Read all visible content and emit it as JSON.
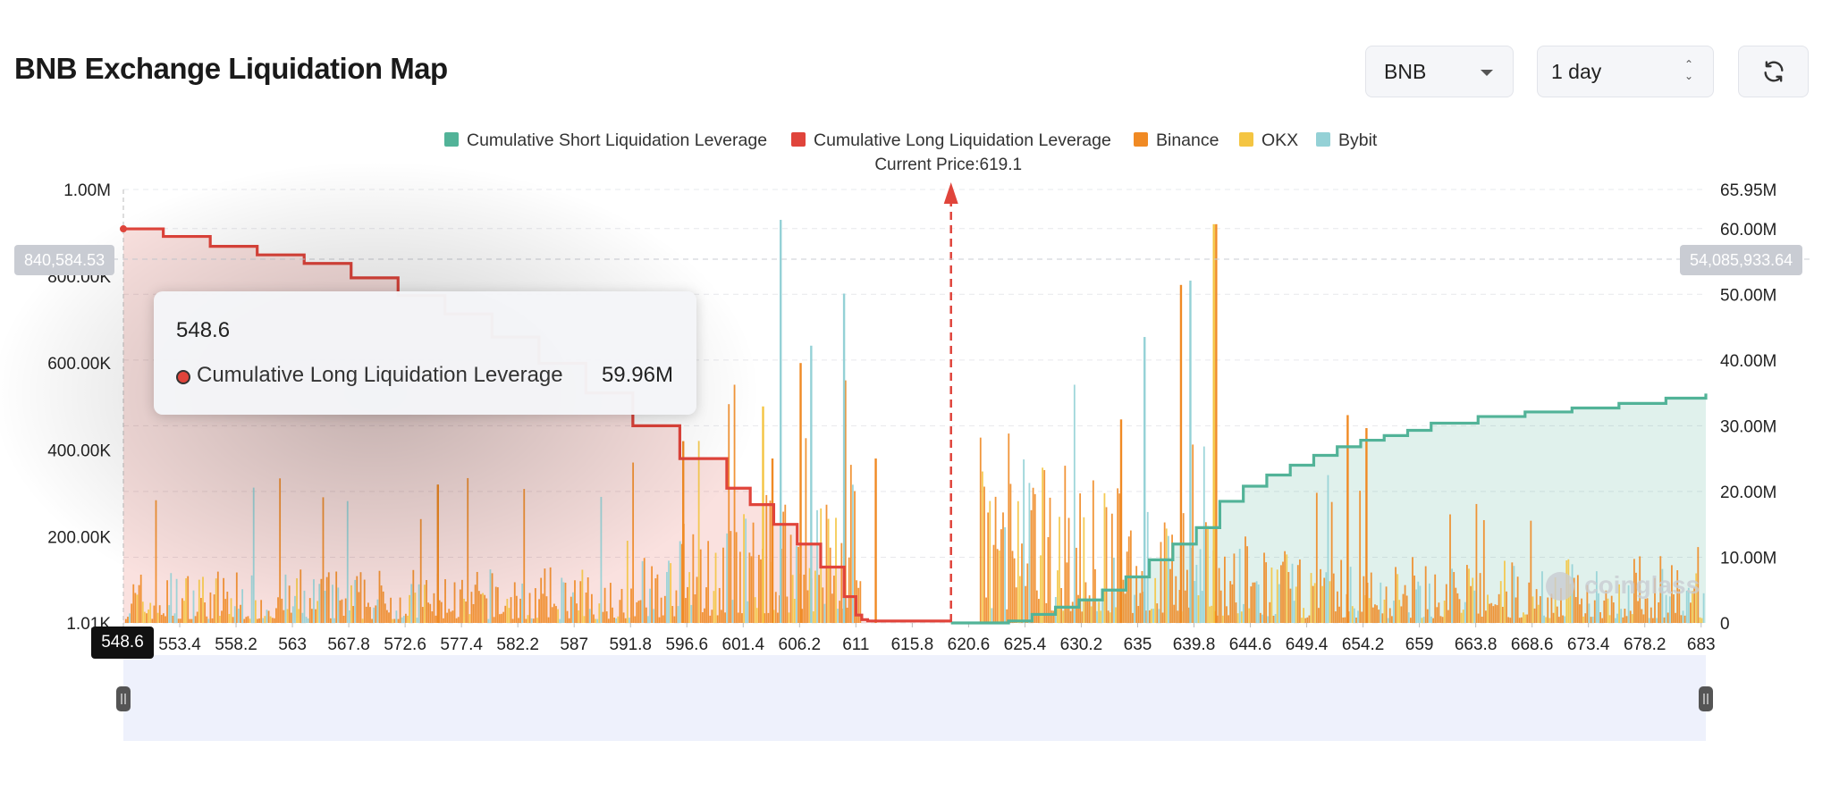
{
  "header": {
    "title": "BNB Exchange Liquidation Map",
    "coin_select": "BNB",
    "range_select": "1 day"
  },
  "icons": {
    "refresh": "refresh-icon",
    "dropdown": "chevron-down-icon",
    "stepper": "updown-icon"
  },
  "colors": {
    "short": "#52b398",
    "long": "#e0443b",
    "binance": "#f08a24",
    "okx": "#f4c542",
    "bybit": "#94d1d6",
    "current_price_line": "#e0443b"
  },
  "crosshair": {
    "left_value": "840,584.53",
    "right_value": "54,085,933.64",
    "x_value": "548.6"
  },
  "tooltip": {
    "title": "548.6",
    "series_name": "Cumulative Long Liquidation Leverage",
    "value": "59.96M"
  },
  "watermark": "coinglass",
  "chart_data": {
    "type": "bar",
    "legend": [
      "Cumulative Short Liquidation Leverage",
      "Cumulative Long Liquidation Leverage",
      "Binance",
      "OKX",
      "Bybit"
    ],
    "legend_placement": "top-center",
    "current_price_label": "Current Price:619.1",
    "current_price": 619.1,
    "x_ticks": [
      "548.6",
      "553.4",
      "558.2",
      "563",
      "567.8",
      "572.6",
      "577.4",
      "582.2",
      "587",
      "591.8",
      "596.6",
      "601.4",
      "606.2",
      "611",
      "615.8",
      "620.6",
      "625.4",
      "630.2",
      "635",
      "639.8",
      "644.6",
      "649.4",
      "654.2",
      "659",
      "663.8",
      "668.6",
      "673.4",
      "678.2",
      "683"
    ],
    "xlim": [
      548.6,
      683.4
    ],
    "left_axis_ticks": [
      "1.01K",
      "200.00K",
      "400.00K",
      "600.00K",
      "800.00K",
      "1.00M"
    ],
    "left_ylim": [
      1010,
      1000000
    ],
    "right_axis_ticks": [
      "0",
      "10.00M",
      "20.00M",
      "30.00M",
      "40.00M",
      "50.00M",
      "60.00M",
      "65.95M"
    ],
    "right_ylim": [
      0,
      65950000
    ],
    "grid": true,
    "series": [
      {
        "name": "Cumulative Long Liquidation Leverage",
        "axis": "right",
        "x": [
          548.6,
          552,
          556,
          560,
          564,
          568,
          572,
          576,
          580,
          584,
          588,
          592,
          596,
          600,
          602,
          604,
          606,
          608,
          610,
          611,
          611.5,
          612,
          614,
          616,
          618,
          619.1
        ],
        "values": [
          59.96,
          58.8,
          57.3,
          56.0,
          54.7,
          52.5,
          49.8,
          47.0,
          43.5,
          39.5,
          35.0,
          30.0,
          25.0,
          20.5,
          18.0,
          15.0,
          12.0,
          8.5,
          4.0,
          1.2,
          0.5,
          0.3,
          0.3,
          0.3,
          0.3,
          0.3
        ],
        "unit": "M"
      },
      {
        "name": "Cumulative Short Liquidation Leverage",
        "axis": "right",
        "x": [
          619.1,
          622,
          624,
          626,
          628,
          630,
          632,
          634,
          636,
          638,
          640,
          642,
          644,
          646,
          648,
          650,
          652,
          654,
          656,
          658,
          660,
          664,
          668,
          672,
          676,
          680,
          683.4
        ],
        "values": [
          0,
          0,
          0.3,
          1.3,
          2.4,
          3.5,
          5.0,
          7.0,
          9.6,
          12.0,
          14.5,
          18.5,
          20.8,
          22.5,
          24.0,
          25.5,
          26.8,
          27.8,
          28.5,
          29.3,
          30.4,
          31.4,
          32.1,
          32.7,
          33.4,
          34.2,
          34.9
        ],
        "unit": "M"
      },
      {
        "name": "Binance",
        "axis": "left",
        "peaks": [
          {
            "x": 575.3,
            "value": 320000
          },
          {
            "x": 596.2,
            "value": 420000
          },
          {
            "x": 603.8,
            "value": 380000
          },
          {
            "x": 606.2,
            "value": 600000
          },
          {
            "x": 610.0,
            "value": 560000
          },
          {
            "x": 612.6,
            "value": 380000
          },
          {
            "x": 633.5,
            "value": 470000
          },
          {
            "x": 638.6,
            "value": 780000
          },
          {
            "x": 641.6,
            "value": 920000
          },
          {
            "x": 652.8,
            "value": 480000
          },
          {
            "x": 654.4,
            "value": 450000
          }
        ],
        "unit": ""
      },
      {
        "name": "OKX",
        "axis": "left",
        "peaks": [
          {
            "x": 603.0,
            "value": 500000
          },
          {
            "x": 641.4,
            "value": 920000
          }
        ],
        "unit": ""
      },
      {
        "name": "Bybit",
        "axis": "left",
        "peaks": [
          {
            "x": 604.5,
            "value": 930000
          },
          {
            "x": 607.1,
            "value": 640000
          },
          {
            "x": 609.9,
            "value": 760000
          },
          {
            "x": 635.5,
            "value": 660000
          },
          {
            "x": 639.4,
            "value": 790000
          }
        ],
        "unit": ""
      }
    ]
  }
}
